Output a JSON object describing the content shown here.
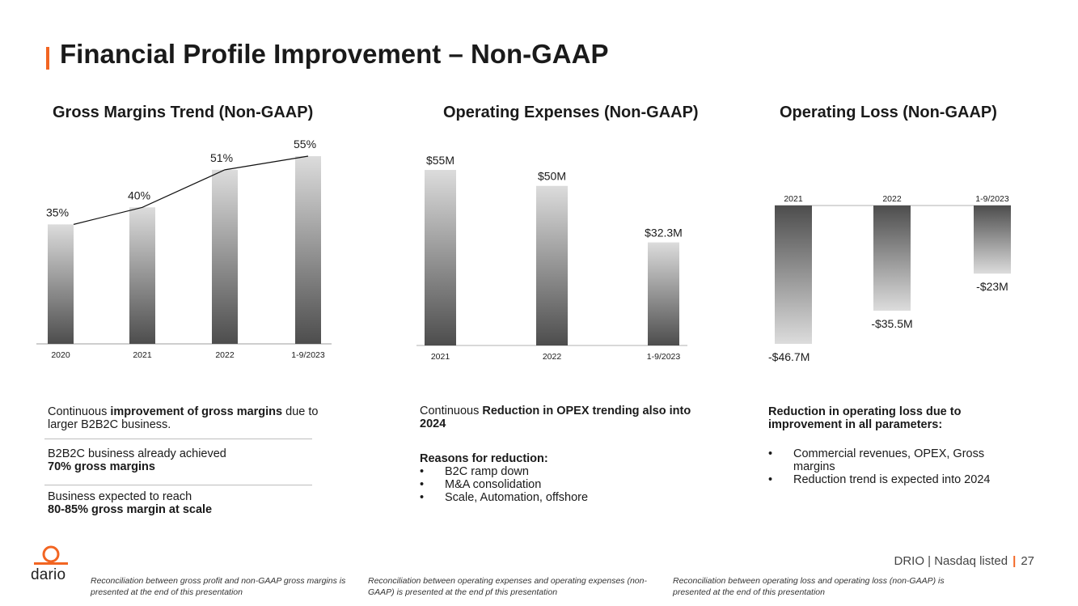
{
  "page_title": "Financial Profile Improvement – Non-GAAP",
  "colors": {
    "accent": "#f26522",
    "bar_dark": "#4d4d4d",
    "bar_light": "#dcdcdc"
  },
  "chart_data": [
    {
      "type": "bar",
      "title": "Gross Margins Trend (Non-GAAP)",
      "categories": [
        "2020",
        "2021",
        "2022",
        "1-9/2023"
      ],
      "values": [
        35,
        40,
        51,
        55
      ],
      "labels": [
        "35%",
        "40%",
        "51%",
        "55%"
      ],
      "unit": "%",
      "trend_line": true,
      "ylim": [
        0,
        60
      ],
      "xlabel": "",
      "ylabel": ""
    },
    {
      "type": "bar",
      "title": "Operating Expenses (Non-GAAP)",
      "categories": [
        "2021",
        "2022",
        "1-9/2023"
      ],
      "values": [
        55,
        50,
        32.3
      ],
      "labels": [
        "$55M",
        "$50M",
        "$32.3M"
      ],
      "unit": "$M",
      "ylim": [
        0,
        60
      ],
      "xlabel": "",
      "ylabel": ""
    },
    {
      "type": "bar",
      "title": "Operating Loss (Non-GAAP)",
      "categories": [
        "2021",
        "2022",
        "1-9/2023"
      ],
      "values": [
        -46.7,
        -35.5,
        -23
      ],
      "labels": [
        "-$46.7M",
        "-$35.5M",
        "-$23M"
      ],
      "unit": "$M",
      "ylim": [
        -50,
        0
      ],
      "xlabel": "",
      "ylabel": ""
    }
  ],
  "col1": {
    "p1_pre": "Continuous ",
    "p1_bold": "improvement of gross margins",
    "p1_post": " due to larger B2B2C business.",
    "p2_line1": "B2B2C business already achieved",
    "p2_bold": "70% gross margins",
    "p3_line1": "Business expected to reach",
    "p3_bold": "80-85% gross margin at scale"
  },
  "col2": {
    "p1_pre": "Continuous ",
    "p1_bold": "Reduction in OPEX trending also into 2024",
    "reasons_title": "Reasons for reduction:",
    "reasons": [
      "B2C ramp down",
      "M&A consolidation",
      "Scale, Automation, offshore"
    ]
  },
  "col3": {
    "heading": "Reduction in operating loss due to improvement in all parameters:",
    "bullets": [
      "Commercial revenues, OPEX, Gross margins",
      "Reduction trend is expected into 2024"
    ]
  },
  "footer": {
    "logo_text": "dario",
    "ticker": "DRIO | Nasdaq listed",
    "page_number": "27",
    "footnotes": [
      "Reconciliation between gross profit and non-GAAP gross margins is presented at the end of this presentation",
      "Reconciliation between operating expenses and operating expenses (non-GAAP) is presented at the end pf this presentation",
      "Reconciliation between operating loss and operating loss (non-GAAP) is presented at the end of this presentation"
    ]
  }
}
